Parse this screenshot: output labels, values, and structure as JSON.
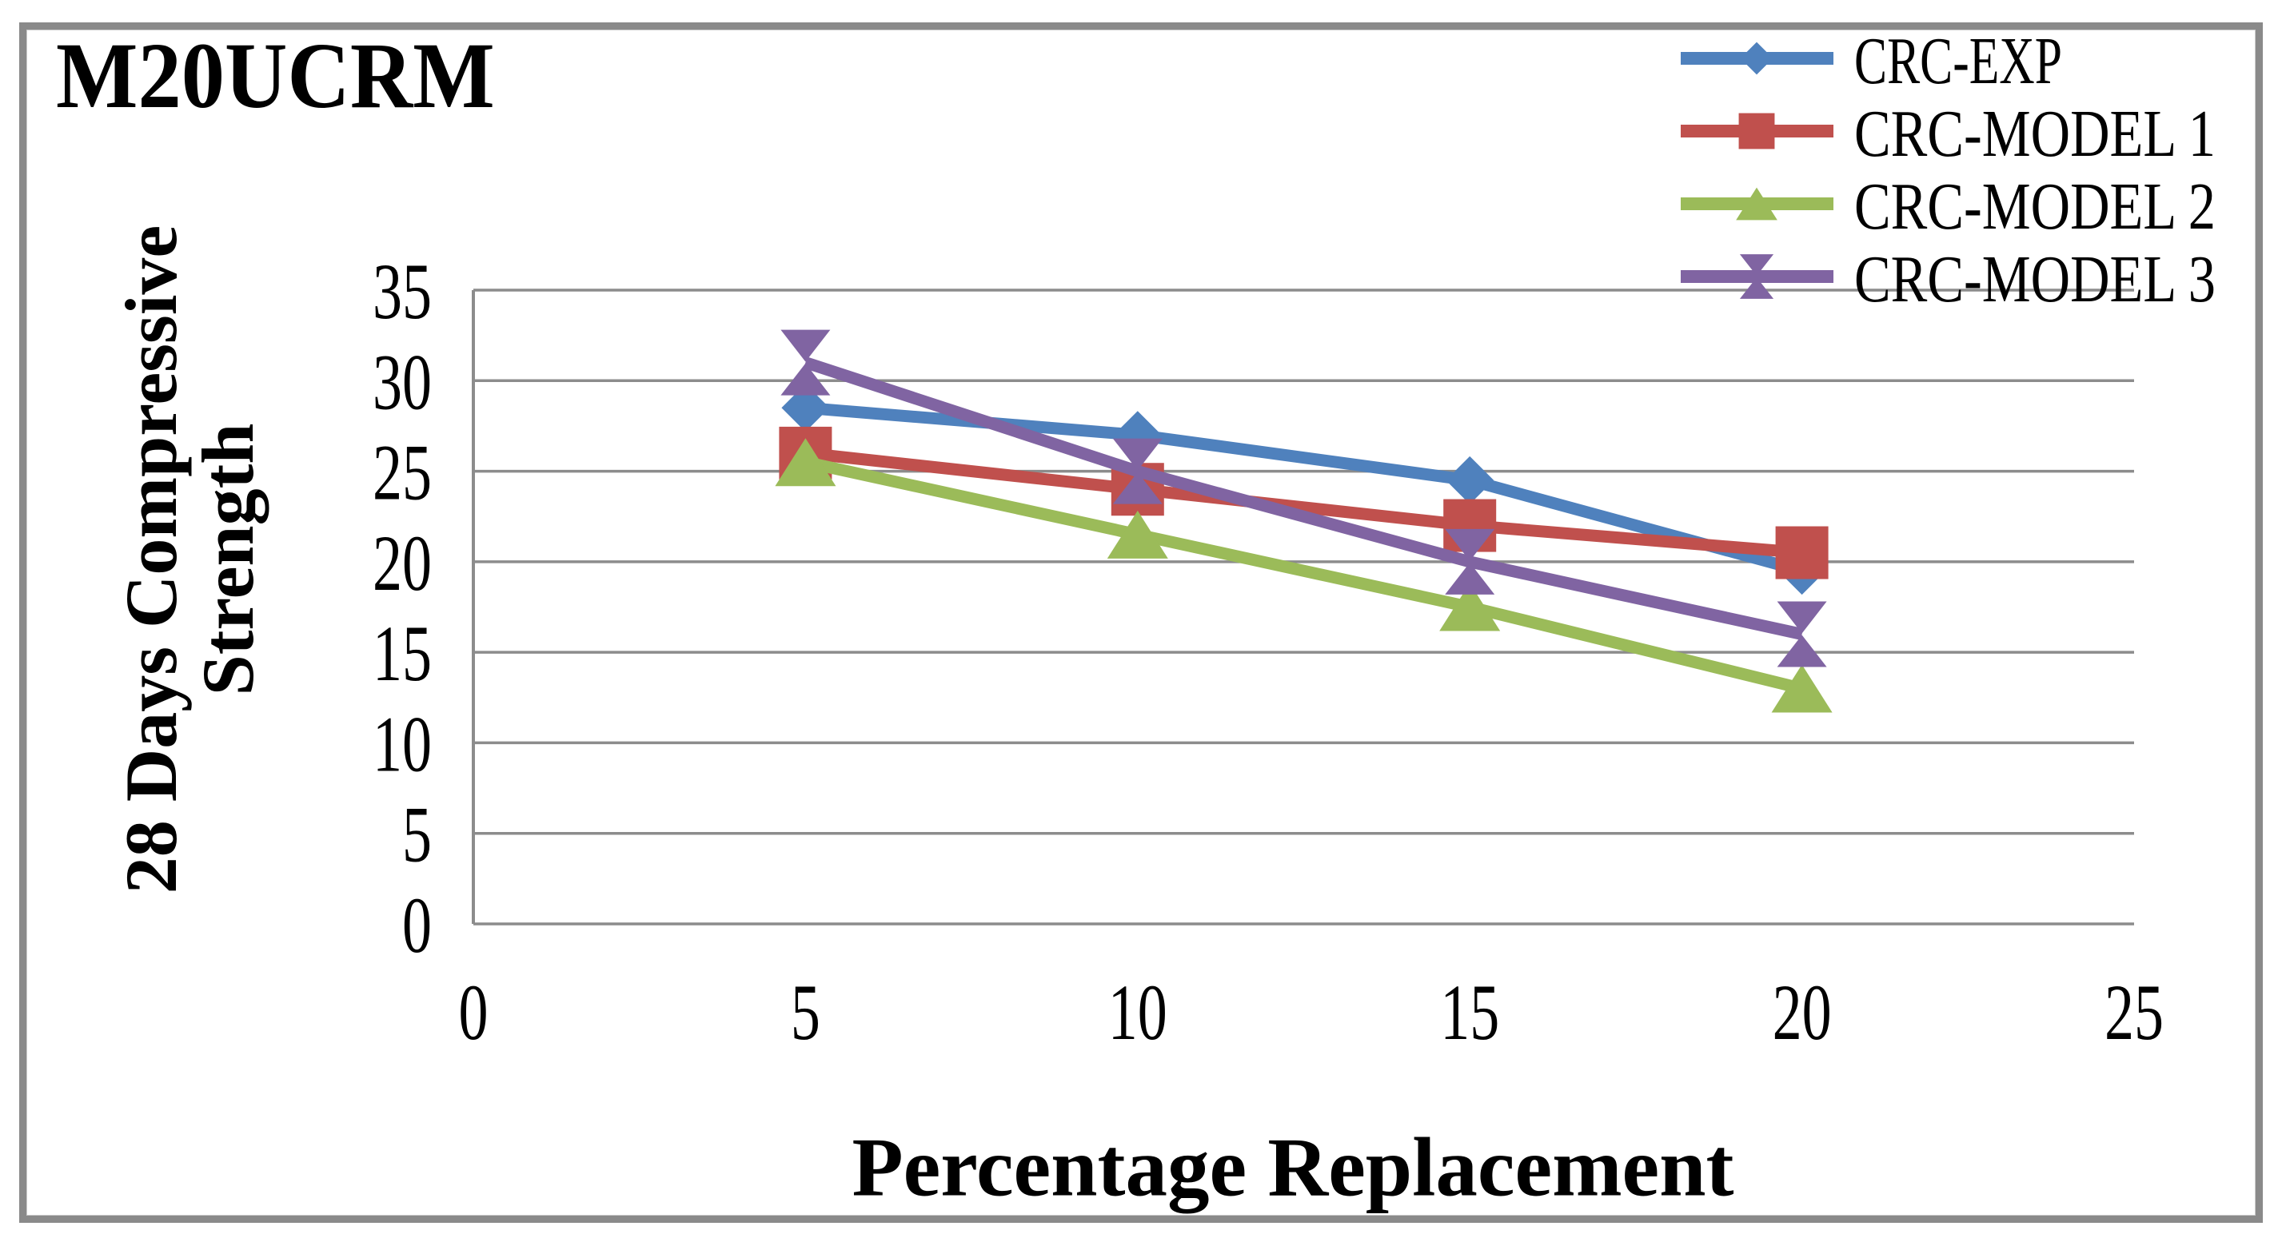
{
  "figure": {
    "title": "M20UCRM",
    "y_axis_title_line1": "28 Days Compressive",
    "y_axis_title_line2": "Strength",
    "x_axis_title": "Percentage Replacement"
  },
  "chart_data": {
    "type": "line",
    "title": "M20UCRM",
    "xlabel": "Percentage Replacement",
    "ylabel": "28 Days Compressive Strength",
    "x": [
      5,
      10,
      15,
      20
    ],
    "series": [
      {
        "name": "CRC-EXP",
        "color": "#4F81BD",
        "marker": "diamond",
        "values": [
          28.5,
          27,
          24.5,
          19.5
        ]
      },
      {
        "name": "CRC-MODEL 1",
        "color": "#C0504D",
        "marker": "square",
        "values": [
          26,
          24,
          22,
          20.5
        ]
      },
      {
        "name": "CRC-MODEL 2",
        "color": "#9BBB59",
        "marker": "triangle-up",
        "values": [
          25.5,
          21.5,
          17.5,
          13
        ]
      },
      {
        "name": "CRC-MODEL 3",
        "color": "#8064A2",
        "marker": "bowtie-x",
        "values": [
          31,
          25,
          20,
          16
        ]
      }
    ],
    "xlim": [
      0,
      25
    ],
    "ylim": [
      0,
      35
    ],
    "x_ticks": [
      0,
      5,
      10,
      15,
      20,
      25
    ],
    "y_ticks": [
      0,
      5,
      10,
      15,
      20,
      25,
      30,
      35
    ],
    "grid": "horizontal-only",
    "legend_position": "top-right",
    "gridline_color": "#8c8c8c",
    "axis_line_color": "#8c8c8c",
    "frame_border_color": "#8a8a8a",
    "text_color": "#000000"
  }
}
